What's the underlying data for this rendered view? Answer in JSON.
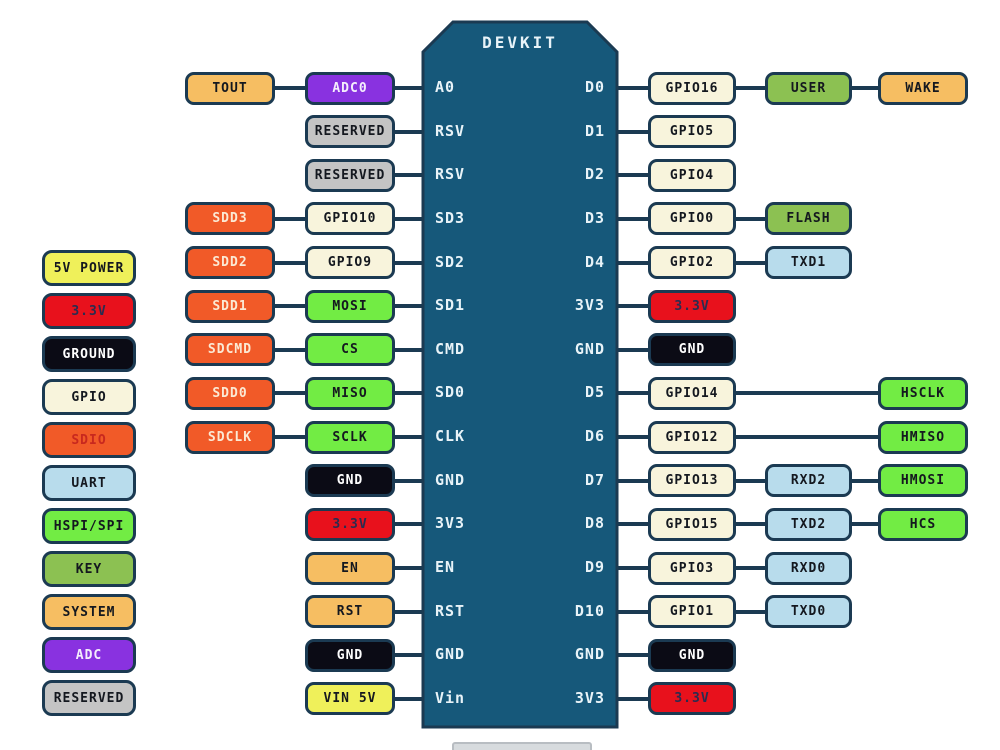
{
  "board": {
    "title": "DEVKIT",
    "fill": "#16587A",
    "outline": "#1B3A52"
  },
  "colors": {
    "power5v": {
      "bg": "#EFF05A",
      "text": "#14181F"
    },
    "power33": {
      "bg": "#E8111C",
      "text": "#2A2C50"
    },
    "ground": {
      "bg": "#0B0B15",
      "text": "#FFFFFF"
    },
    "gpio": {
      "bg": "#F8F4DC",
      "text": "#14181F"
    },
    "sdio": {
      "bg": "#F15A28",
      "text": "#FBE9D4"
    },
    "sdio_legend": {
      "bg": "#F15A28",
      "text": "#C8281E"
    },
    "uart": {
      "bg": "#B8DCEC",
      "text": "#14181F"
    },
    "hspi": {
      "bg": "#72EC44",
      "text": "#14181F"
    },
    "key": {
      "bg": "#8CC152",
      "text": "#14181F"
    },
    "system": {
      "bg": "#F6BE62",
      "text": "#14181F"
    },
    "adc": {
      "bg": "#8932E0",
      "text": "#F4EDFC"
    },
    "reserved": {
      "bg": "#C4C4C4",
      "text": "#14181F"
    }
  },
  "legend": [
    {
      "label": "5V POWER",
      "type": "power5v"
    },
    {
      "label": "3.3V",
      "type": "power33"
    },
    {
      "label": "GROUND",
      "type": "ground"
    },
    {
      "label": "GPIO",
      "type": "gpio"
    },
    {
      "label": "SDIO",
      "type": "sdio_legend"
    },
    {
      "label": "UART",
      "type": "uart"
    },
    {
      "label": "HSPI/SPI",
      "type": "hspi"
    },
    {
      "label": "KEY",
      "type": "key"
    },
    {
      "label": "SYSTEM",
      "type": "system"
    },
    {
      "label": "ADC",
      "type": "adc"
    },
    {
      "label": "RESERVED",
      "type": "reserved"
    }
  ],
  "left_rows": [
    {
      "pin": "A0",
      "boxes": [
        {
          "label": "ADC0",
          "type": "adc",
          "col": 0
        },
        {
          "label": "TOUT",
          "type": "system",
          "col": 1
        }
      ]
    },
    {
      "pin": "RSV",
      "boxes": [
        {
          "label": "RESERVED",
          "type": "reserved",
          "col": 0
        }
      ]
    },
    {
      "pin": "RSV",
      "boxes": [
        {
          "label": "RESERVED",
          "type": "reserved",
          "col": 0
        }
      ]
    },
    {
      "pin": "SD3",
      "boxes": [
        {
          "label": "GPIO10",
          "type": "gpio",
          "col": 0
        },
        {
          "label": "SDD3",
          "type": "sdio",
          "col": 1
        }
      ]
    },
    {
      "pin": "SD2",
      "boxes": [
        {
          "label": "GPIO9",
          "type": "gpio",
          "col": 0
        },
        {
          "label": "SDD2",
          "type": "sdio",
          "col": 1
        }
      ]
    },
    {
      "pin": "SD1",
      "boxes": [
        {
          "label": "MOSI",
          "type": "hspi",
          "col": 0
        },
        {
          "label": "SDD1",
          "type": "sdio",
          "col": 1
        }
      ]
    },
    {
      "pin": "CMD",
      "boxes": [
        {
          "label": "CS",
          "type": "hspi",
          "col": 0
        },
        {
          "label": "SDCMD",
          "type": "sdio",
          "col": 1
        }
      ]
    },
    {
      "pin": "SD0",
      "boxes": [
        {
          "label": "MISO",
          "type": "hspi",
          "col": 0
        },
        {
          "label": "SDD0",
          "type": "sdio",
          "col": 1
        }
      ]
    },
    {
      "pin": "CLK",
      "boxes": [
        {
          "label": "SCLK",
          "type": "hspi",
          "col": 0
        },
        {
          "label": "SDCLK",
          "type": "sdio",
          "col": 1
        }
      ]
    },
    {
      "pin": "GND",
      "boxes": [
        {
          "label": "GND",
          "type": "ground",
          "col": 0
        }
      ]
    },
    {
      "pin": "3V3",
      "boxes": [
        {
          "label": "3.3V",
          "type": "power33",
          "col": 0
        }
      ]
    },
    {
      "pin": "EN",
      "boxes": [
        {
          "label": "EN",
          "type": "system",
          "col": 0
        }
      ]
    },
    {
      "pin": "RST",
      "boxes": [
        {
          "label": "RST",
          "type": "system",
          "col": 0
        }
      ]
    },
    {
      "pin": "GND",
      "boxes": [
        {
          "label": "GND",
          "type": "ground",
          "col": 0
        }
      ]
    },
    {
      "pin": "Vin",
      "boxes": [
        {
          "label": "VIN 5V",
          "type": "power5v",
          "col": 0
        }
      ]
    }
  ],
  "right_rows": [
    {
      "pin": "D0",
      "boxes": [
        {
          "label": "GPIO16",
          "type": "gpio",
          "col": 0
        },
        {
          "label": "USER",
          "type": "key",
          "col": 1
        },
        {
          "label": "WAKE",
          "type": "system",
          "col": 2
        }
      ]
    },
    {
      "pin": "D1",
      "boxes": [
        {
          "label": "GPIO5",
          "type": "gpio",
          "col": 0
        }
      ]
    },
    {
      "pin": "D2",
      "boxes": [
        {
          "label": "GPIO4",
          "type": "gpio",
          "col": 0
        }
      ]
    },
    {
      "pin": "D3",
      "boxes": [
        {
          "label": "GPIO0",
          "type": "gpio",
          "col": 0
        },
        {
          "label": "FLASH",
          "type": "key",
          "col": 1
        }
      ]
    },
    {
      "pin": "D4",
      "boxes": [
        {
          "label": "GPIO2",
          "type": "gpio",
          "col": 0
        },
        {
          "label": "TXD1",
          "type": "uart",
          "col": 1
        }
      ]
    },
    {
      "pin": "3V3",
      "boxes": [
        {
          "label": "3.3V",
          "type": "power33",
          "col": 0
        }
      ]
    },
    {
      "pin": "GND",
      "boxes": [
        {
          "label": "GND",
          "type": "ground",
          "col": 0
        }
      ]
    },
    {
      "pin": "D5",
      "boxes": [
        {
          "label": "GPIO14",
          "type": "gpio",
          "col": 0
        },
        {
          "label": "HSCLK",
          "type": "hspi",
          "col": 2
        }
      ]
    },
    {
      "pin": "D6",
      "boxes": [
        {
          "label": "GPIO12",
          "type": "gpio",
          "col": 0
        },
        {
          "label": "HMISO",
          "type": "hspi",
          "col": 2
        }
      ]
    },
    {
      "pin": "D7",
      "boxes": [
        {
          "label": "GPIO13",
          "type": "gpio",
          "col": 0
        },
        {
          "label": "RXD2",
          "type": "uart",
          "col": 1
        },
        {
          "label": "HMOSI",
          "type": "hspi",
          "col": 2
        }
      ]
    },
    {
      "pin": "D8",
      "boxes": [
        {
          "label": "GPIO15",
          "type": "gpio",
          "col": 0
        },
        {
          "label": "TXD2",
          "type": "uart",
          "col": 1
        },
        {
          "label": "HCS",
          "type": "hspi",
          "col": 2
        }
      ]
    },
    {
      "pin": "D9",
      "boxes": [
        {
          "label": "GPIO3",
          "type": "gpio",
          "col": 0
        },
        {
          "label": "RXD0",
          "type": "uart",
          "col": 1
        }
      ]
    },
    {
      "pin": "D10",
      "boxes": [
        {
          "label": "GPIO1",
          "type": "gpio",
          "col": 0
        },
        {
          "label": "TXD0",
          "type": "uart",
          "col": 1
        }
      ]
    },
    {
      "pin": "GND",
      "boxes": [
        {
          "label": "GND",
          "type": "ground",
          "col": 0
        }
      ]
    },
    {
      "pin": "3V3",
      "boxes": [
        {
          "label": "3.3V",
          "type": "power33",
          "col": 0
        }
      ]
    }
  ]
}
